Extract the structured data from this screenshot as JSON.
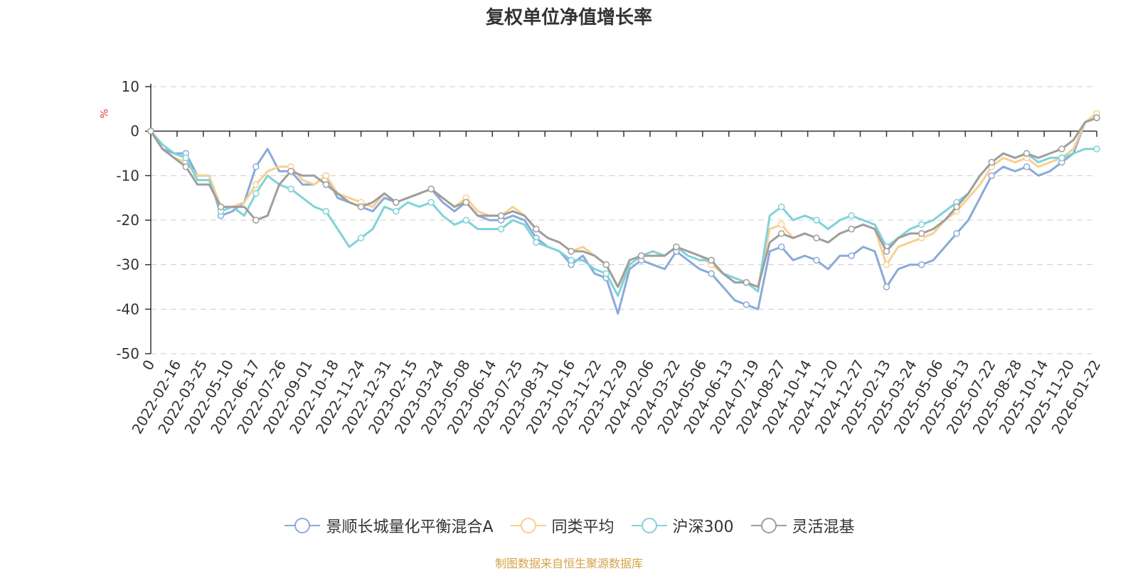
{
  "chart_data": {
    "type": "line",
    "title": "复权单位净值增长率",
    "ylabel": "%",
    "ylim": [
      -50,
      10
    ],
    "yticks": [
      10,
      0,
      -10,
      -20,
      -30,
      -40,
      -50
    ],
    "x_labels": [
      "0",
      "2022-02-16",
      "2022-03-25",
      "2022-05-10",
      "2022-06-17",
      "2022-07-26",
      "2022-09-01",
      "2022-10-18",
      "2022-11-24",
      "2022-12-31",
      "2023-02-15",
      "2023-03-24",
      "2023-05-08",
      "2023-06-14",
      "2023-07-25",
      "2023-08-31",
      "2023-10-16",
      "2023-11-22",
      "2023-12-29",
      "2024-02-06",
      "2024-03-22",
      "2024-05-06",
      "2024-06-13",
      "2024-07-19",
      "2024-08-27",
      "2024-10-14",
      "2024-11-20",
      "2024-12-27",
      "2025-02-13",
      "2025-03-24",
      "2025-05-06",
      "2025-06-13",
      "2025-07-22",
      "2025-08-28",
      "2025-10-14",
      "2025-11-20",
      "2026-01-22"
    ],
    "grid": "horizontal-dashed",
    "legend_position": "bottom",
    "series": [
      {
        "name": "景顺长城量化平衡混合A",
        "color": "#8aaad8",
        "values": [
          0,
          -4,
          -5,
          -5,
          -10,
          -10,
          -19,
          -18,
          -16,
          -8,
          -4,
          -9,
          -9,
          -12,
          -12,
          -10,
          -15,
          -16,
          -17,
          -18,
          -15,
          -16,
          -15,
          -14,
          -13,
          -16,
          -18,
          -16,
          -19,
          -20,
          -20,
          -19,
          -20,
          -24,
          -26,
          -27,
          -30,
          -28,
          -32,
          -33,
          -41,
          -31,
          -29,
          -30,
          -31,
          -27,
          -29,
          -31,
          -32,
          -35,
          -38,
          -39,
          -40,
          -27,
          -26,
          -29,
          -28,
          -29,
          -31,
          -28,
          -28,
          -26,
          -27,
          -35,
          -31,
          -30,
          -30,
          -29,
          -26,
          -23,
          -20,
          -15,
          -10,
          -8,
          -9,
          -8,
          -10,
          -9,
          -7,
          -5,
          2,
          3
        ]
      },
      {
        "name": "同类平均",
        "color": "#f8d08e",
        "values": [
          0,
          -4,
          -6,
          -7,
          -10,
          -10,
          -17,
          -17,
          -16,
          -12,
          -9,
          -8,
          -8,
          -11,
          -12,
          -10,
          -14,
          -15,
          -16,
          -17,
          -14,
          -16,
          -15,
          -14,
          -13,
          -15,
          -17,
          -15,
          -18,
          -19,
          -19,
          -17,
          -19,
          -22,
          -24,
          -25,
          -27,
          -26,
          -28,
          -30,
          -35,
          -30,
          -28,
          -27,
          -28,
          -26,
          -27,
          -28,
          -30,
          -32,
          -33,
          -34,
          -35,
          -22,
          -21,
          -24,
          -23,
          -24,
          -25,
          -23,
          -22,
          -21,
          -22,
          -30,
          -26,
          -25,
          -24,
          -23,
          -20,
          -18,
          -15,
          -12,
          -8,
          -6,
          -7,
          -6,
          -8,
          -7,
          -6,
          -4,
          2,
          4
        ]
      },
      {
        "name": "沪深300",
        "color": "#7fd3d9",
        "values": [
          0,
          -3,
          -5,
          -6,
          -11,
          -11,
          -18,
          -17,
          -19,
          -14,
          -10,
          -12,
          -13,
          -15,
          -17,
          -18,
          -22,
          -26,
          -24,
          -22,
          -17,
          -18,
          -16,
          -17,
          -16,
          -19,
          -21,
          -20,
          -22,
          -22,
          -22,
          -20,
          -21,
          -25,
          -26,
          -27,
          -29,
          -29,
          -31,
          -32,
          -37,
          -30,
          -28,
          -27,
          -28,
          -26,
          -28,
          -29,
          -29,
          -32,
          -33,
          -34,
          -36,
          -19,
          -17,
          -20,
          -19,
          -20,
          -22,
          -20,
          -19,
          -20,
          -21,
          -26,
          -24,
          -22,
          -21,
          -20,
          -18,
          -16,
          -14,
          -10,
          -7,
          -5,
          -6,
          -5,
          -7,
          -6,
          -6,
          -5,
          -4,
          -4
        ]
      },
      {
        "name": "灵活混基",
        "color": "#9e9e9e",
        "values": [
          0,
          -4,
          -6,
          -8,
          -12,
          -12,
          -17,
          -17,
          -17,
          -20,
          -19,
          -12,
          -9,
          -10,
          -10,
          -12,
          -14,
          -16,
          -17,
          -16,
          -14,
          -16,
          -15,
          -14,
          -13,
          -15,
          -17,
          -16,
          -19,
          -19,
          -19,
          -18,
          -19,
          -22,
          -24,
          -25,
          -27,
          -27,
          -28,
          -30,
          -35,
          -29,
          -28,
          -28,
          -28,
          -26,
          -27,
          -28,
          -29,
          -32,
          -34,
          -34,
          -35,
          -25,
          -23,
          -24,
          -23,
          -24,
          -25,
          -23,
          -22,
          -21,
          -22,
          -27,
          -24,
          -23,
          -23,
          -22,
          -20,
          -17,
          -14,
          -10,
          -7,
          -5,
          -6,
          -5,
          -6,
          -5,
          -4,
          -2,
          2,
          3
        ]
      }
    ]
  },
  "source": "制图数据来自恒生聚源数据库"
}
